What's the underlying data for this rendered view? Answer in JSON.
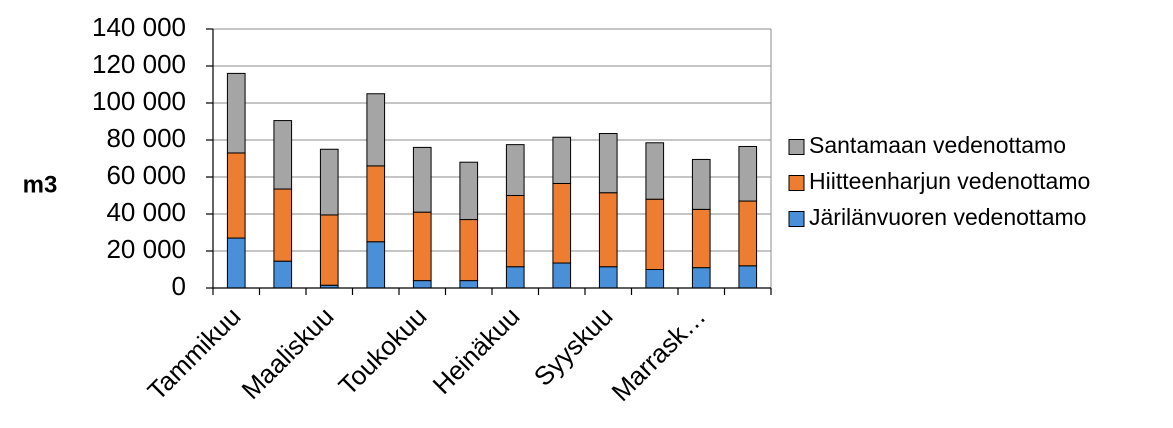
{
  "chart_data": {
    "type": "bar",
    "stacked": true,
    "ylabel": "m3",
    "xlabel": "",
    "title": "",
    "ylim": [
      0,
      140000
    ],
    "yticks": [
      0,
      20000,
      40000,
      60000,
      80000,
      100000,
      120000,
      140000
    ],
    "ytick_labels": [
      "0",
      "20 000",
      "40 000",
      "60 000",
      "80 000",
      "100 000",
      "120 000",
      "140 000"
    ],
    "categories": [
      "Tammikuu",
      "",
      "Maaliskuu",
      "",
      "Toukokuu",
      "",
      "Heinäkuu",
      "",
      "Syyskuu",
      "",
      "Marrask…",
      ""
    ],
    "series": [
      {
        "name": "Järilänvuoren vedenottamo",
        "color": "#4A90D9",
        "values": [
          27000,
          14500,
          1500,
          25000,
          4000,
          4000,
          11500,
          13500,
          11500,
          10000,
          11000,
          12000
        ]
      },
      {
        "name": "Hiitteenharjun vedenottamo",
        "color": "#ED7D31",
        "values": [
          46000,
          39000,
          38000,
          41000,
          37000,
          33000,
          38500,
          43000,
          40000,
          38000,
          31500,
          35000
        ]
      },
      {
        "name": "Santamaan vedenottamo",
        "color": "#A5A5A5",
        "values": [
          43000,
          37000,
          35500,
          39000,
          35000,
          31000,
          27500,
          25000,
          32000,
          30500,
          27000,
          29500
        ]
      }
    ],
    "grid": true,
    "legend_position": "right"
  }
}
